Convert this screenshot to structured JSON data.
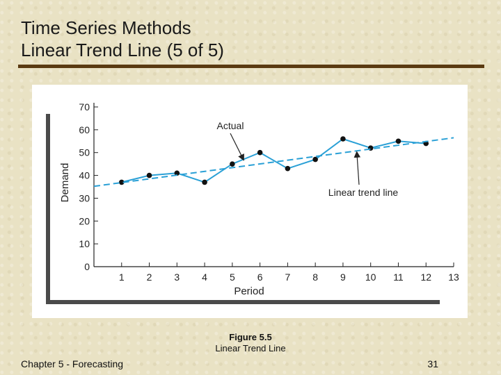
{
  "slide": {
    "title_line1": "Time Series Methods",
    "title_line2": "Linear Trend Line (5 of 5)",
    "caption_figure": "Figure 5.5",
    "caption_text": "Linear Trend Line",
    "footer_left": "Chapter 5 - Forecasting",
    "page_number": "31"
  },
  "colors": {
    "title_rule": "#5a3a12",
    "series_line": "#2aa0d6",
    "marker": "#111111",
    "axis": "#222222"
  },
  "chart_data": {
    "type": "line",
    "title": "",
    "xlabel": "Period",
    "ylabel": "Demand",
    "xlim": [
      0,
      13
    ],
    "ylim": [
      0,
      70
    ],
    "x_ticks": [
      1,
      2,
      3,
      4,
      5,
      6,
      7,
      8,
      9,
      10,
      11,
      12,
      13
    ],
    "y_ticks": [
      0,
      10,
      20,
      30,
      40,
      50,
      60,
      70
    ],
    "grid": false,
    "legend": "none",
    "series": [
      {
        "name": "Actual",
        "style": "solid-with-markers",
        "x": [
          1,
          2,
          3,
          4,
          5,
          6,
          7,
          8,
          9,
          10,
          11,
          12
        ],
        "y": [
          37,
          40,
          41,
          37,
          45,
          50,
          43,
          47,
          56,
          52,
          55,
          54
        ]
      },
      {
        "name": "Linear trend line",
        "style": "dashed",
        "x": [
          0,
          13
        ],
        "y": [
          35.2,
          56.5
        ]
      }
    ],
    "annotations": [
      {
        "text": "Actual",
        "points_to": {
          "x": 5.4,
          "y": 47
        }
      },
      {
        "text": "Linear trend line",
        "points_to": {
          "x": 9.5,
          "y": 50
        }
      }
    ]
  }
}
